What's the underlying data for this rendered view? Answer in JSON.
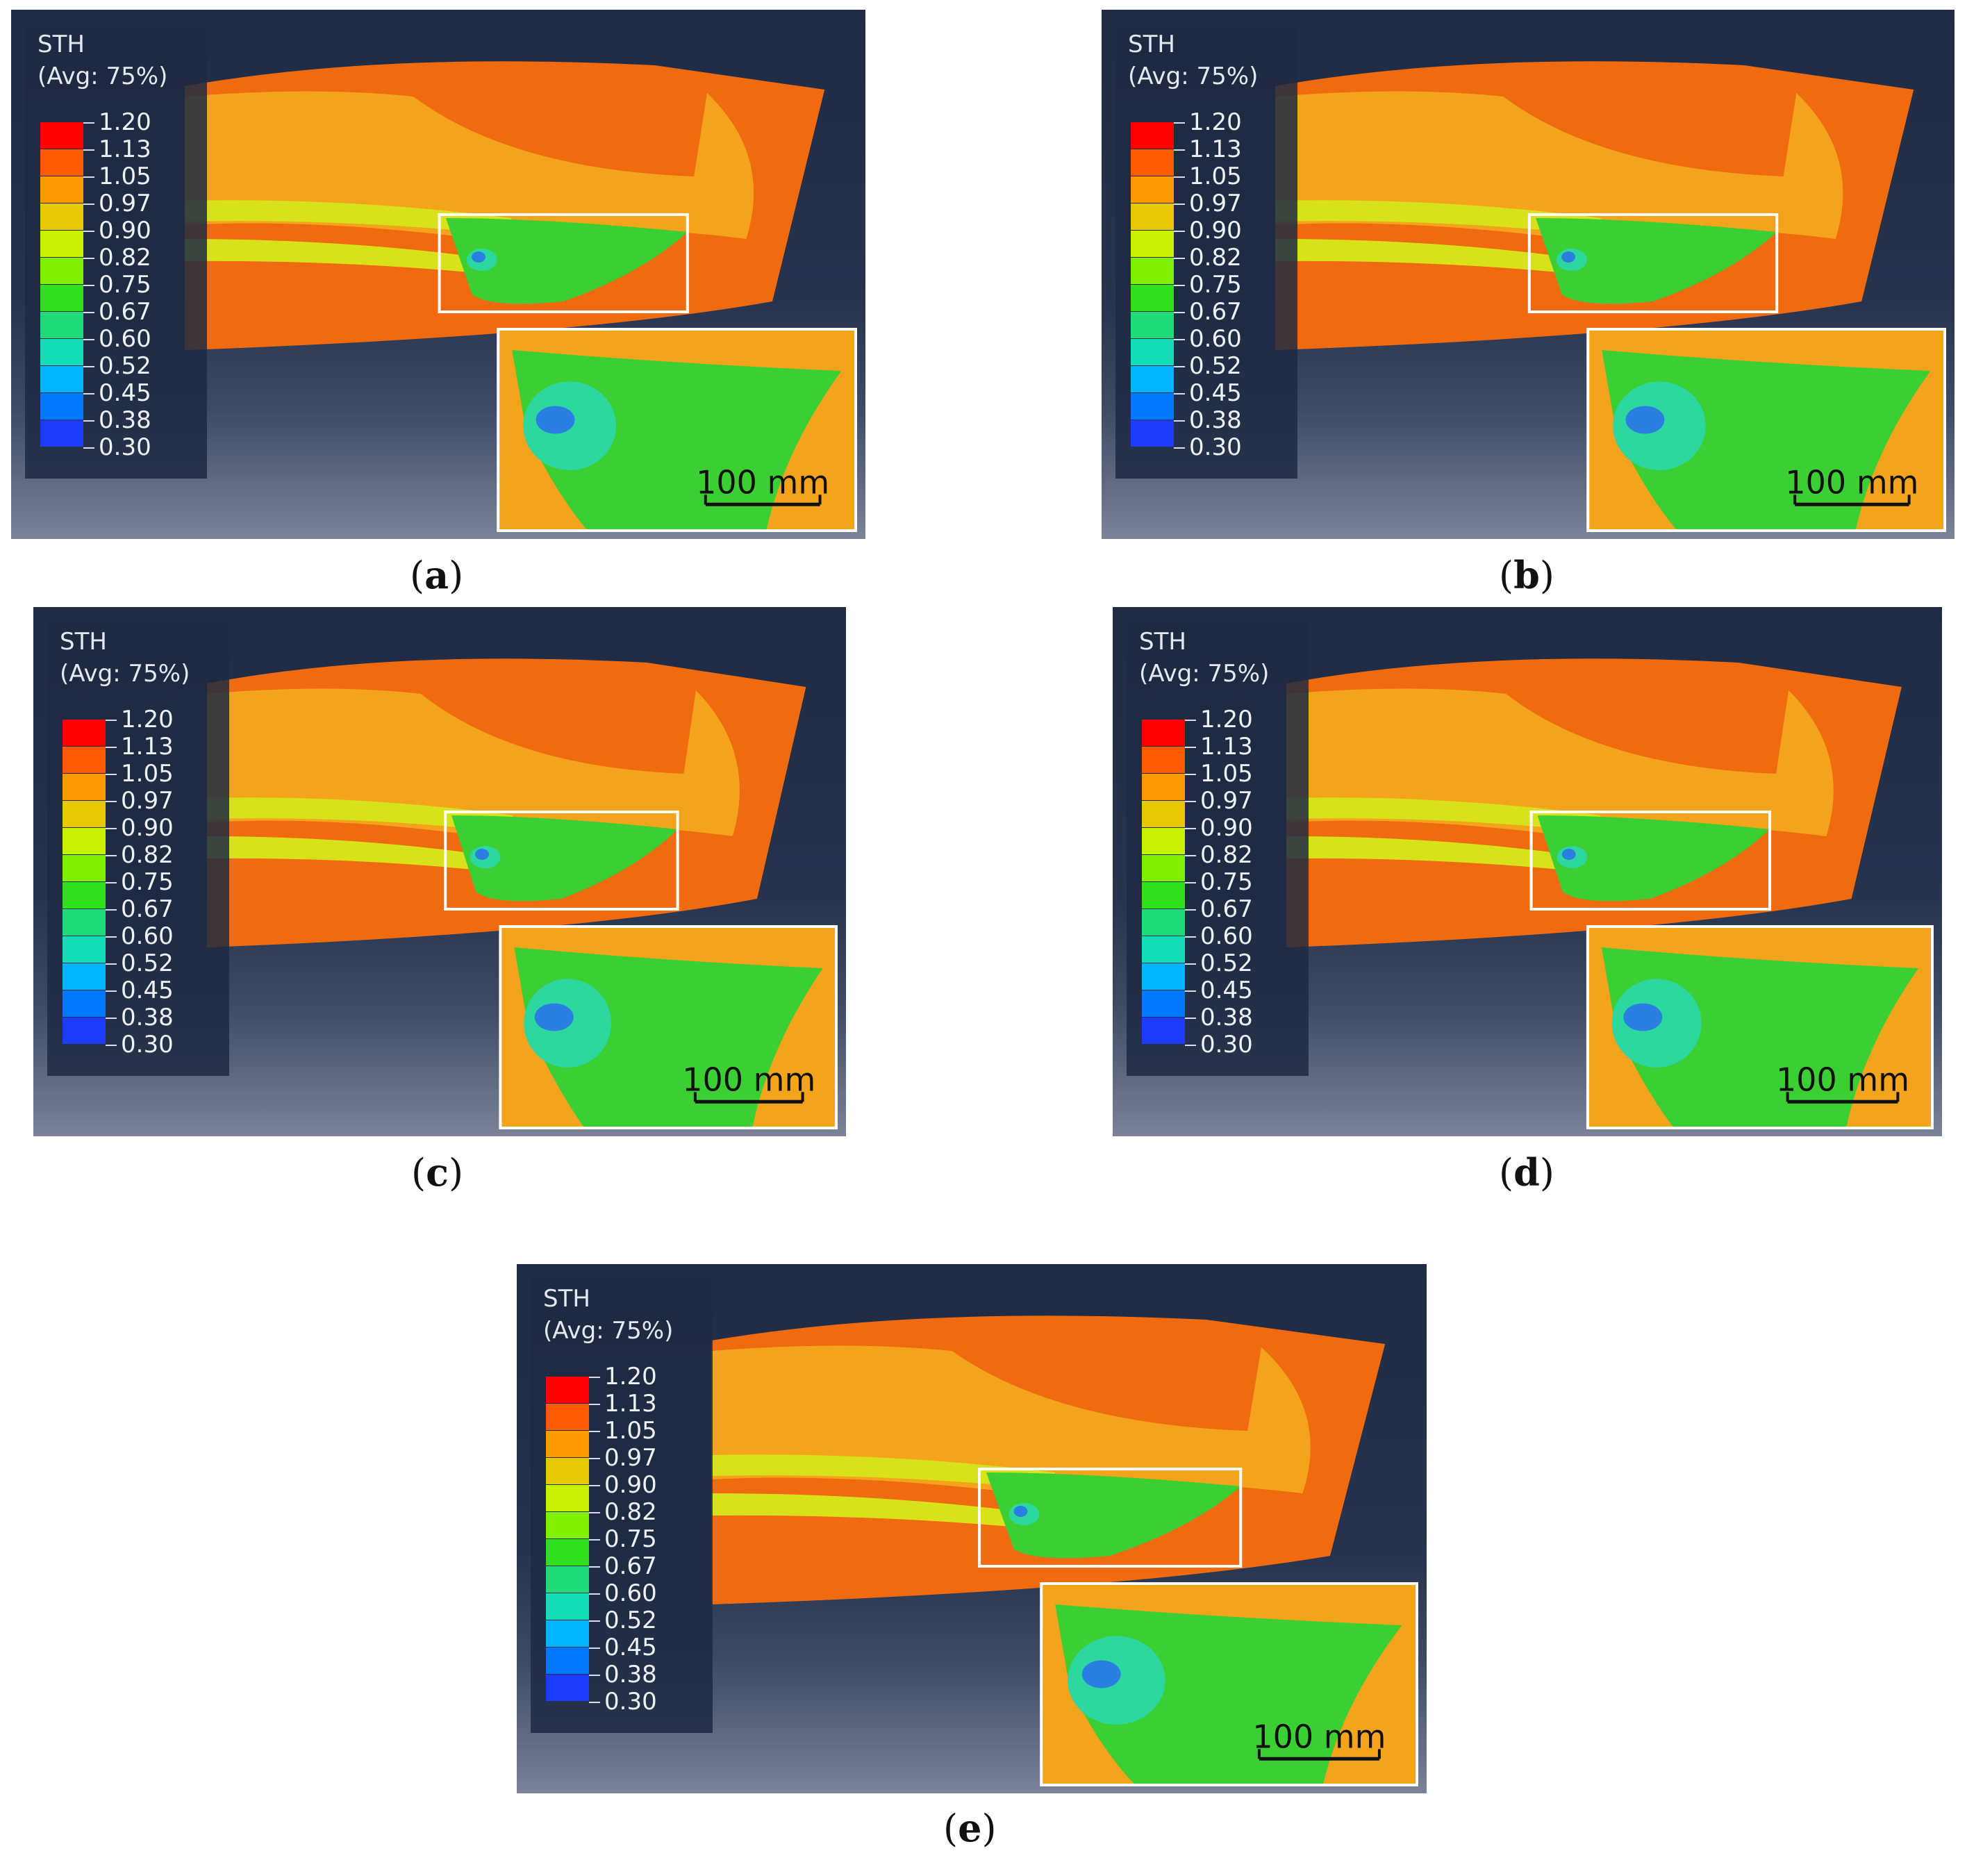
{
  "legend": {
    "variable": "STH",
    "averaging": "(Avg: 75%)",
    "levels": [
      "1.20",
      "1.13",
      "1.05",
      "0.97",
      "0.90",
      "0.82",
      "0.75",
      "0.67",
      "0.60",
      "0.52",
      "0.45",
      "0.38",
      "0.30"
    ],
    "colors": [
      "#ff0000",
      "#ff5a00",
      "#ff9a00",
      "#e8c800",
      "#c8f000",
      "#7ef000",
      "#2ee01e",
      "#1edc78",
      "#14dcb4",
      "#00b4ff",
      "#0078ff",
      "#1e3cff",
      "#0000ff"
    ]
  },
  "scale_bar": "100 mm",
  "panels": [
    {
      "id": "a",
      "label": "a"
    },
    {
      "id": "b",
      "label": "b"
    },
    {
      "id": "c",
      "label": "c"
    },
    {
      "id": "d",
      "label": "d"
    },
    {
      "id": "e",
      "label": "e"
    }
  ],
  "colors": {
    "orange": "#f06a10",
    "amber": "#f4a41c",
    "yellow": "#d8e21a",
    "green": "#3ccf34",
    "cyan": "#2cd8a0",
    "blue": "#2a7fe0",
    "frame": "#ffffff"
  }
}
